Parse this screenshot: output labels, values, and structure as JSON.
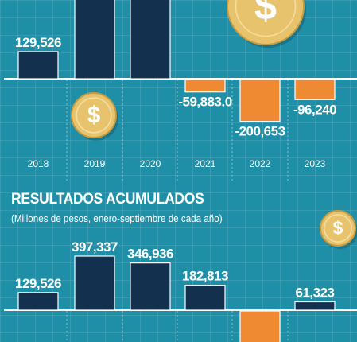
{
  "chart_data": [
    {
      "type": "bar",
      "categories": [
        "2018",
        "2019",
        "2020",
        "2021",
        "2022",
        "2023"
      ],
      "values": [
        129526,
        null,
        null,
        -59883.0,
        -200653,
        -96240
      ],
      "value_labels": [
        "129,526",
        "",
        "",
        "-59,883.0",
        "-200,653",
        "-96,240"
      ],
      "colors": {
        "positive": "#14304f",
        "negative": "#ef8a32"
      },
      "note": "Bars for 2019 and 2020 are cropped at the top edge; their values are not visible."
    },
    {
      "type": "bar",
      "title": "RESULTADOS ACUMULADOS",
      "subtitle": "(Millones de pesos, enero-septiembre de cada año)",
      "categories": [
        "2018",
        "2019",
        "2020",
        "2021",
        "2022",
        "2023"
      ],
      "values": [
        129526,
        397337,
        346936,
        182813,
        null,
        61323
      ],
      "value_labels": [
        "129,526",
        "397,337",
        "346,936",
        "182,813",
        "",
        "61,323"
      ],
      "colors": {
        "positive": "#14304f",
        "negative": "#ef8a32"
      },
      "note": "The 2022 bar is negative and cropped at the bottom edge; its label is not visible."
    }
  ],
  "icons": [
    "dollar-coin-icon",
    "dollar-coin-icon",
    "dollar-coin-icon"
  ],
  "colors": {
    "background": "#1f8fa8",
    "bar_positive": "#14304f",
    "bar_negative": "#ef8a32",
    "coin": "#e7c36d",
    "text": "#ffffff"
  }
}
